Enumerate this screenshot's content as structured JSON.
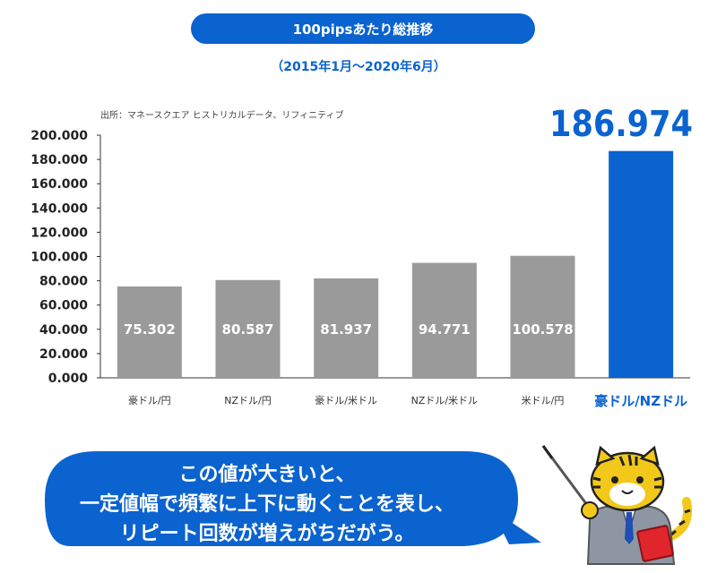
{
  "header": {
    "title": "100pipsあたり総推移",
    "period": "（2015年1月～2020年6月）",
    "source": "出所：マネースクエア ヒストリカルデータ、リフィニティブ"
  },
  "chart_data": {
    "type": "bar",
    "title": "100pipsあたり総推移",
    "subtitle": "（2015年1月～2020年6月）",
    "categories": [
      "豪ドル/円",
      "NZドル/円",
      "豪ドル/米ドル",
      "NZドル/米ドル",
      "米ドル/円",
      "豪ドル/NZドル"
    ],
    "values": [
      75.302,
      80.587,
      81.937,
      94.771,
      100.578,
      186.974
    ],
    "value_labels": [
      "75.302",
      "80.587",
      "81.937",
      "94.771",
      "100.578",
      "186.974"
    ],
    "ylim": [
      0,
      200
    ],
    "yticks": [
      0,
      20,
      40,
      60,
      80,
      100,
      120,
      140,
      160,
      180,
      200
    ],
    "ytick_labels": [
      "0.000",
      "20.000",
      "40.000",
      "60.000",
      "80.000",
      "100.000",
      "120.000",
      "140.000",
      "160.000",
      "180.000",
      "200.000"
    ],
    "highlight_index": 5,
    "colors": {
      "normal": "#9a9a9a",
      "highlight": "#0a63cf"
    },
    "grid": false,
    "legend": "none"
  },
  "bubble": {
    "lines": [
      "この値が大きいと、",
      "一定値幅で頻繁に上下に動くことを表し、",
      "リピート回数が増えがちだがう。"
    ],
    "color": "#0a63cf"
  },
  "mascot": {
    "icon": "tiger-mascot-pointer-icon"
  }
}
